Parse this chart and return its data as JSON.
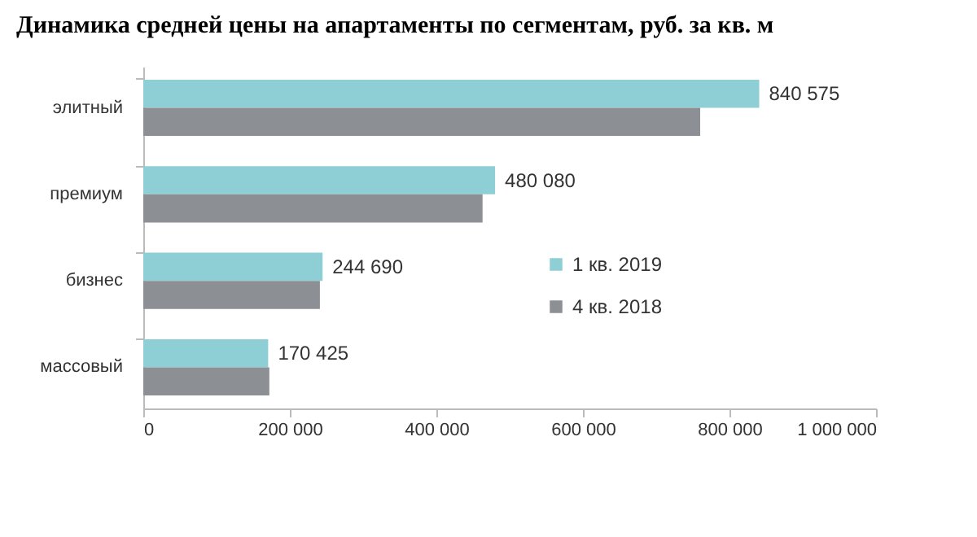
{
  "chart_data": {
    "type": "bar",
    "orientation": "horizontal",
    "title": "Динамика средней цены на апартаменты по сегментам, руб. за кв. м",
    "categories": [
      "элитный",
      "премиум",
      "бизнес",
      "массовый"
    ],
    "series": [
      {
        "name": "1 кв. 2019",
        "color": "#8ecfd6",
        "values": [
          840575,
          480080,
          244690,
          170425
        ],
        "value_labels": [
          "840 575",
          "480 080",
          "244 690",
          "170 425"
        ]
      },
      {
        "name": "4 кв. 2018",
        "color": "#8c8f93",
        "values": [
          760000,
          463000,
          241000,
          172000
        ]
      }
    ],
    "xlim": [
      0,
      1000000
    ],
    "xticks": [
      0,
      {
        "value": 200000,
        "label": "200 000"
      },
      {
        "value": 400000,
        "label": "400 000"
      },
      {
        "value": 600000,
        "label": "600 000"
      },
      {
        "value": 800000,
        "label": "800 000"
      },
      {
        "value": 1000000,
        "label": "1 000 000"
      }
    ],
    "grid": false,
    "legend": "right"
  }
}
